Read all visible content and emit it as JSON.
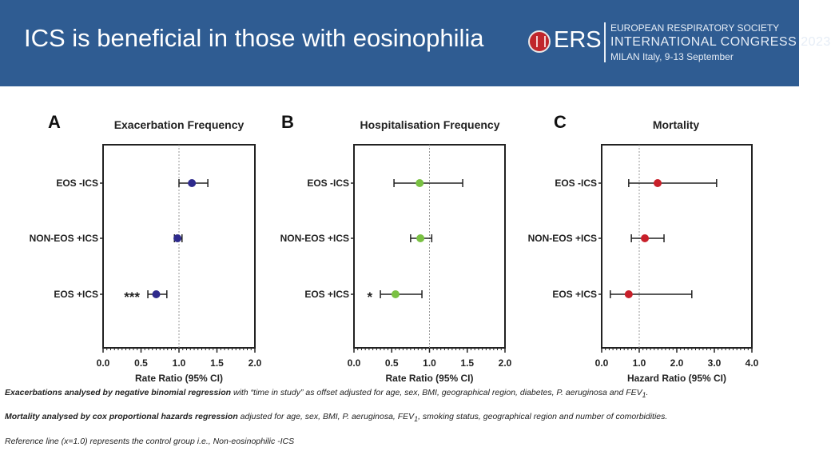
{
  "header": {
    "title": "ICS is beneficial in those with eosinophilia",
    "logo_text": "ERS",
    "org_line1": "EUROPEAN RESPIRATORY SOCIETY",
    "org_line2": "INTERNATIONAL CONGRESS 2023",
    "org_line3": "MILAN Italy, 9-13 September"
  },
  "chart_data": [
    {
      "type": "forest",
      "panel_letter": "A",
      "title": "Exacerbation Frequency",
      "xlabel": "Rate Ratio (95% CI)",
      "xlim": [
        0,
        2
      ],
      "xticks": [
        "0.0",
        "0.5",
        "1.0",
        "1.5",
        "2.0"
      ],
      "reference_line": 1.0,
      "marker_color": "#2e2a8c",
      "categories": [
        "EOS -ICS",
        "NON-EOS +ICS",
        "EOS +ICS"
      ],
      "values": [
        1.17,
        0.98,
        0.7
      ],
      "ci_low": [
        1.0,
        0.94,
        0.59
      ],
      "ci_high": [
        1.38,
        1.04,
        0.84
      ],
      "annotations": [
        "",
        "",
        "***"
      ]
    },
    {
      "type": "forest",
      "panel_letter": "B",
      "title": "Hospitalisation Frequency",
      "xlabel": "Rate Ratio (95% CI)",
      "xlim": [
        0,
        2
      ],
      "xticks": [
        "0.0",
        "0.5",
        "1.0",
        "1.5",
        "2.0"
      ],
      "reference_line": 1.0,
      "marker_color": "#7ac143",
      "categories": [
        "EOS -ICS",
        "NON-EOS +ICS",
        "EOS +ICS"
      ],
      "values": [
        0.87,
        0.88,
        0.55
      ],
      "ci_low": [
        0.53,
        0.75,
        0.35
      ],
      "ci_high": [
        1.44,
        1.03,
        0.9
      ],
      "annotations": [
        "",
        "",
        "*"
      ]
    },
    {
      "type": "forest",
      "panel_letter": "C",
      "title": "Mortality",
      "xlabel": "Hazard Ratio (95% CI)",
      "xlim": [
        0,
        4
      ],
      "xticks": [
        "0.0",
        "1.0",
        "2.0",
        "3.0",
        "4.0"
      ],
      "reference_line": 1.0,
      "marker_color": "#c8202a",
      "categories": [
        "EOS -ICS",
        "NON-EOS +ICS",
        "EOS +ICS"
      ],
      "values": [
        1.49,
        1.15,
        0.72
      ],
      "ci_low": [
        0.72,
        0.79,
        0.23
      ],
      "ci_high": [
        3.06,
        1.66,
        2.4
      ],
      "annotations": [
        "",
        "",
        ""
      ]
    }
  ],
  "footnotes": {
    "f1_bold": "Exacerbations analysed by negative binomial regression",
    "f1_rest": " with “time in study” as offset adjusted for age, sex, BMI, geographical region, diabetes, P. aeruginosa and FEV",
    "f1_sub": "1",
    "f1_end": ".",
    "f2_bold": "Mortality analysed by cox proportional hazards regression",
    "f2_rest": " adjusted for age, sex, BMI, P. aeruginosa, FEV",
    "f2_sub": "1",
    "f2_end": ", smoking status, geographical region and number of comorbidities.",
    "f3": "Reference line (x=1.0) represents the control group i.e., Non-eosinophilic -ICS"
  }
}
